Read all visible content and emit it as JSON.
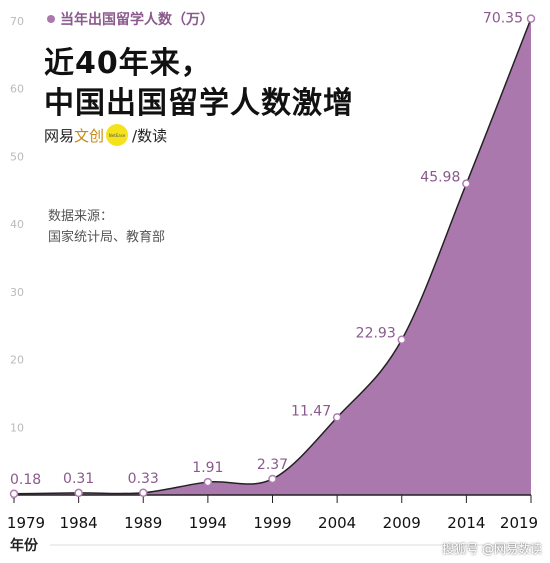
{
  "title": [
    "近40年来，",
    "中国出国留学人数激增"
  ],
  "brand": {
    "left_plain": "网易",
    "left_accent": "文创",
    "dot_text": "NetEase",
    "separator": "/",
    "right": "数读"
  },
  "source": [
    "数据来源：",
    "国家统计局、教育部"
  ],
  "watermark": "搜狐号 @网易数读",
  "chart_data": {
    "type": "area",
    "legend": "当年出国留学人数（万）",
    "xlabel": "年份",
    "ylabel": "",
    "x": [
      1979,
      1984,
      1989,
      1994,
      1999,
      2004,
      2009,
      2014,
      2019
    ],
    "values": [
      0.18,
      0.31,
      0.33,
      1.91,
      2.37,
      11.47,
      22.93,
      45.98,
      70.35
    ],
    "ylim": [
      0,
      70
    ],
    "yticks": [
      0,
      10,
      20,
      30,
      40,
      50,
      60,
      70
    ],
    "grid": false,
    "legend_position": "top-left",
    "colors": {
      "fill": "#ab78ae",
      "line": "#222222",
      "marker_fill": "#ffffff",
      "marker_stroke": "#b07cb3",
      "label": "#8a5a8d",
      "axis_text": "#bbbbbb"
    }
  }
}
